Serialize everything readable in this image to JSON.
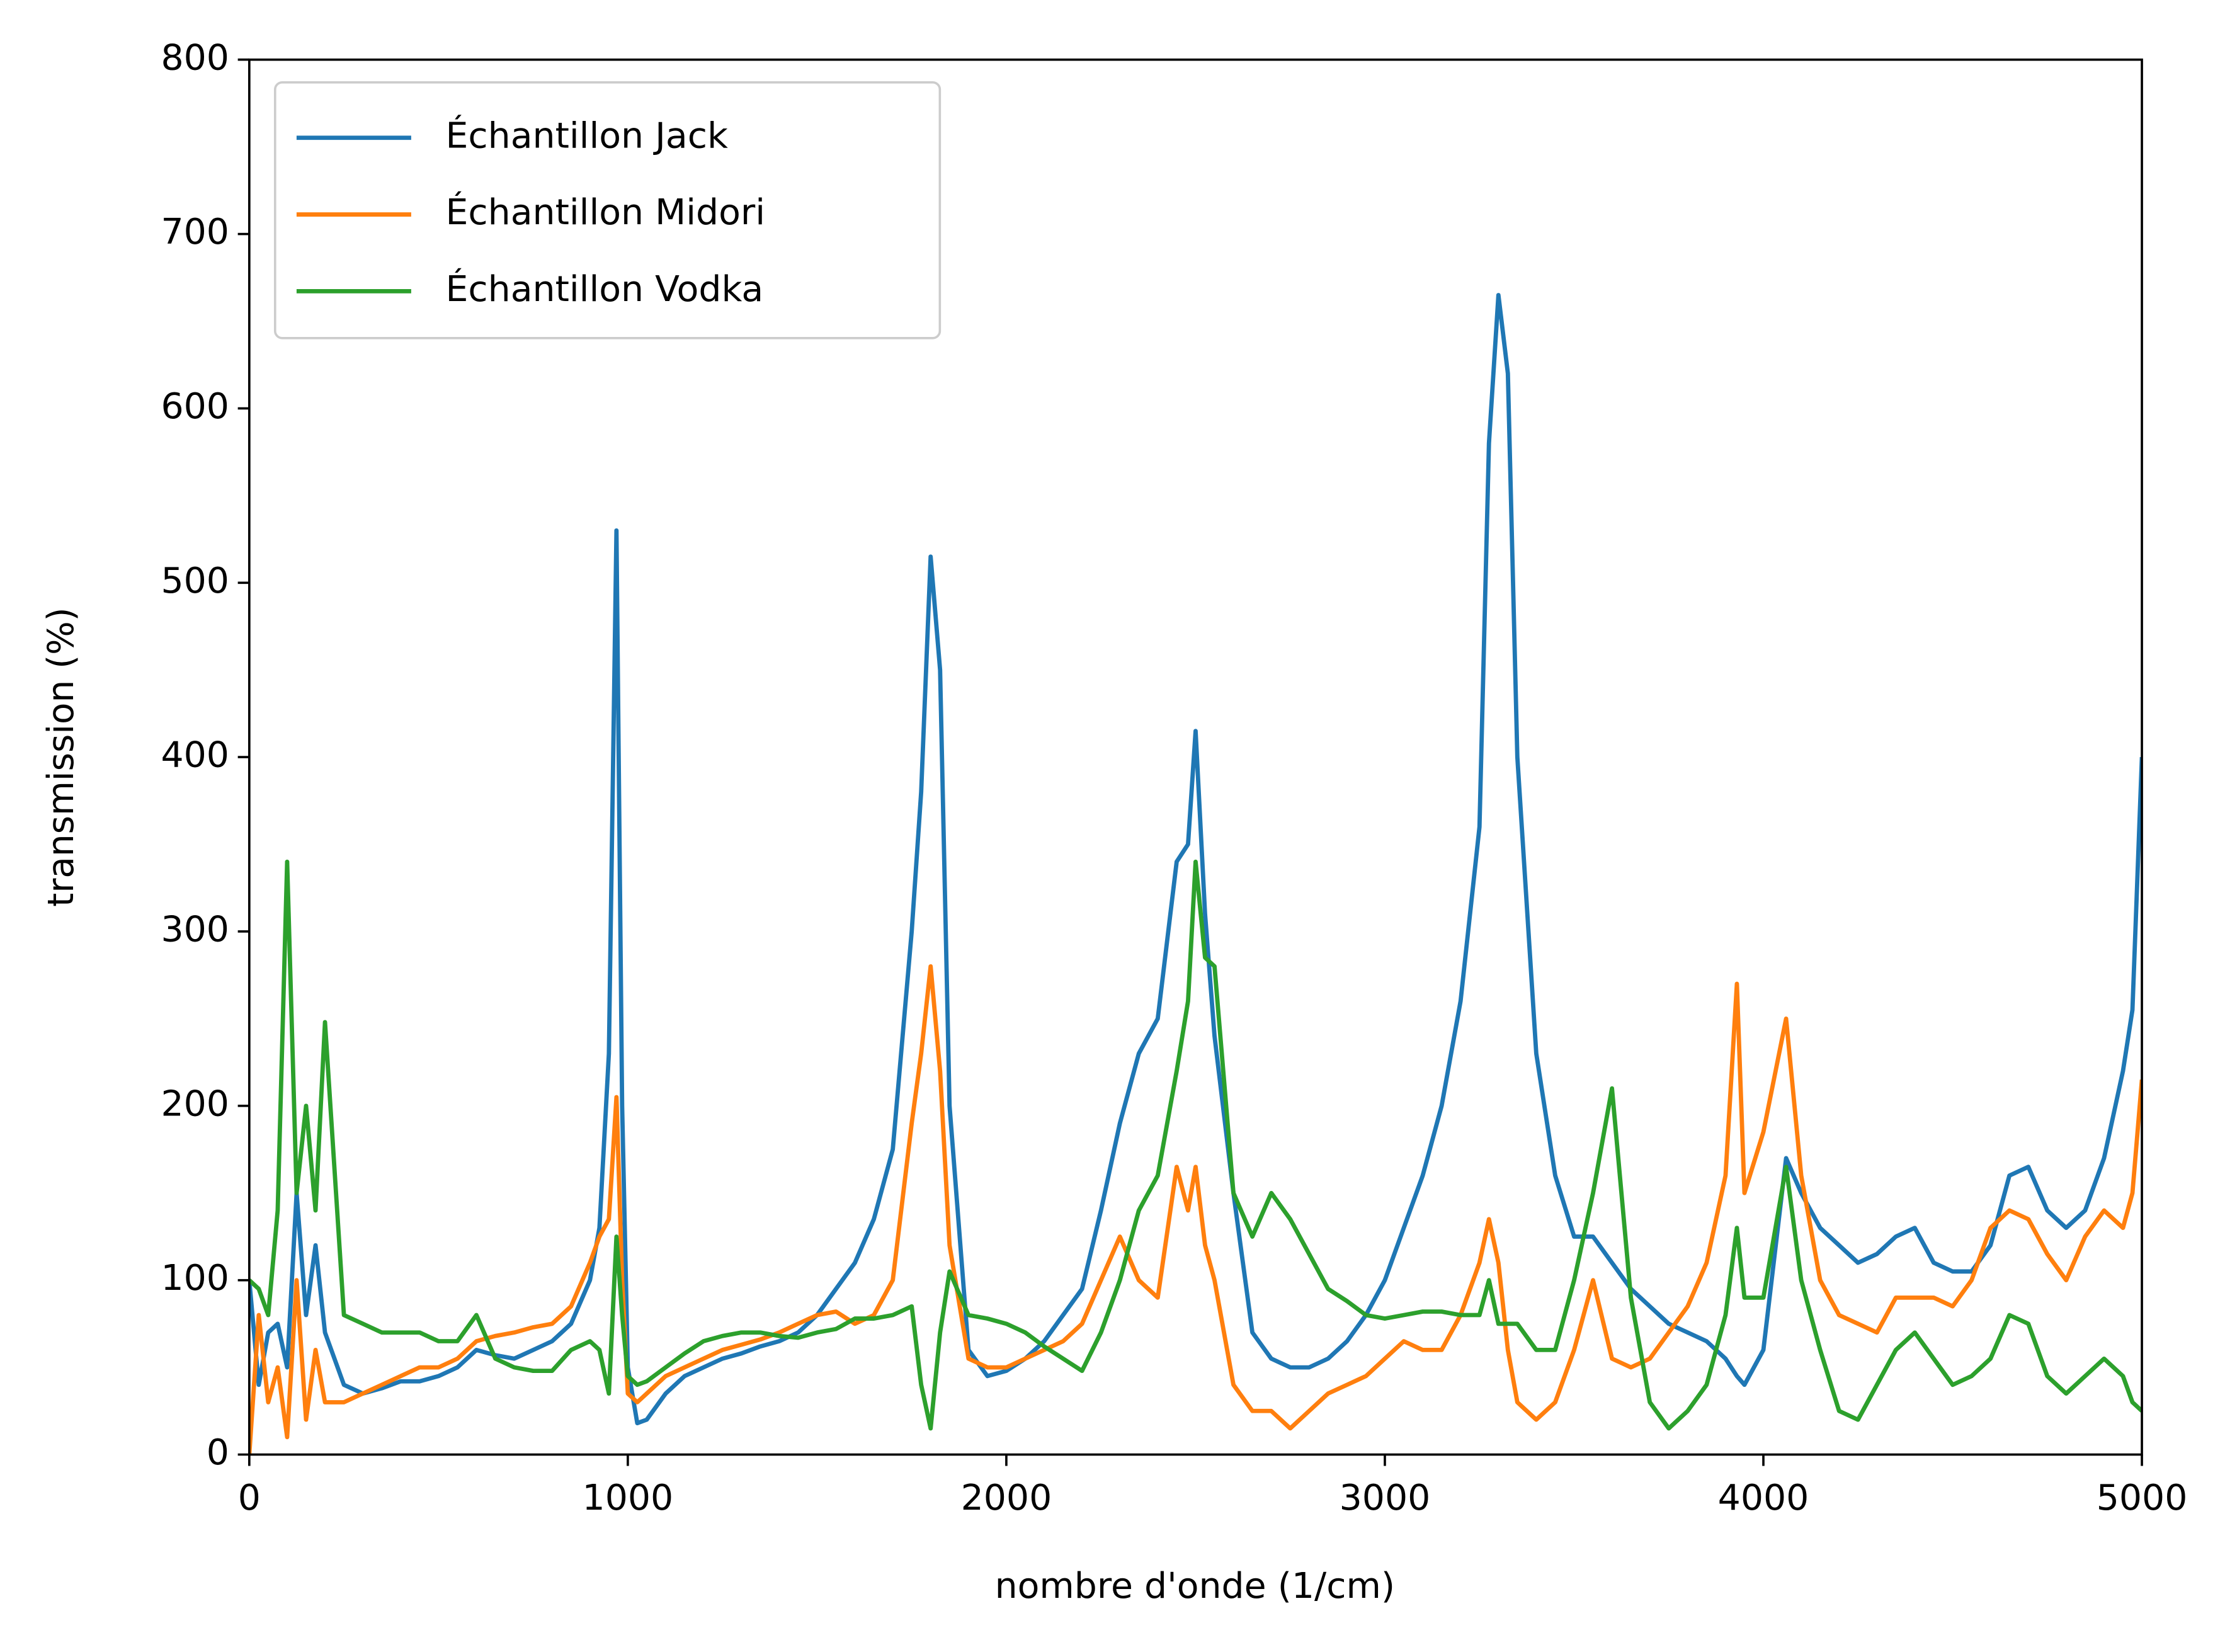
{
  "chart_data": {
    "type": "line",
    "xlabel": "nombre d'onde (1/cm)",
    "ylabel": "transmission (%)",
    "xlim": [
      0,
      5000
    ],
    "ylim": [
      0,
      800
    ],
    "xticks": [
      0,
      1000,
      2000,
      3000,
      4000,
      5000
    ],
    "yticks": [
      0,
      100,
      200,
      300,
      400,
      500,
      600,
      700,
      800
    ],
    "legend": "upper left",
    "x": [
      0,
      25,
      50,
      75,
      100,
      125,
      150,
      175,
      200,
      250,
      300,
      350,
      400,
      450,
      500,
      550,
      600,
      650,
      700,
      750,
      800,
      850,
      900,
      925,
      950,
      970,
      985,
      1000,
      1025,
      1050,
      1100,
      1150,
      1200,
      1250,
      1300,
      1350,
      1400,
      1450,
      1500,
      1550,
      1600,
      1650,
      1700,
      1750,
      1775,
      1800,
      1825,
      1850,
      1900,
      1950,
      2000,
      2050,
      2100,
      2150,
      2200,
      2250,
      2300,
      2350,
      2400,
      2450,
      2480,
      2500,
      2525,
      2550,
      2600,
      2650,
      2700,
      2750,
      2800,
      2850,
      2900,
      2950,
      3000,
      3050,
      3100,
      3150,
      3200,
      3250,
      3275,
      3300,
      3325,
      3350,
      3400,
      3450,
      3500,
      3550,
      3600,
      3650,
      3700,
      3750,
      3800,
      3850,
      3900,
      3930,
      3950,
      4000,
      4060,
      4100,
      4150,
      4200,
      4250,
      4300,
      4350,
      4400,
      4450,
      4500,
      4550,
      4600,
      4650,
      4700,
      4750,
      4800,
      4850,
      4900,
      4950,
      4975,
      5000
    ],
    "series": [
      {
        "name": "Échantillon Jack",
        "color": "#1f77b4",
        "values": [
          100,
          40,
          70,
          75,
          50,
          150,
          80,
          120,
          70,
          40,
          35,
          38,
          42,
          42,
          45,
          50,
          60,
          57,
          55,
          60,
          65,
          75,
          100,
          130,
          230,
          530,
          200,
          50,
          18,
          20,
          35,
          45,
          50,
          55,
          58,
          62,
          65,
          70,
          80,
          95,
          110,
          135,
          175,
          300,
          380,
          515,
          450,
          200,
          60,
          45,
          48,
          55,
          65,
          80,
          95,
          140,
          190,
          230,
          250,
          340,
          350,
          415,
          310,
          240,
          150,
          70,
          55,
          50,
          50,
          55,
          65,
          80,
          100,
          130,
          160,
          200,
          260,
          360,
          580,
          665,
          620,
          400,
          230,
          160,
          125,
          125,
          110,
          95,
          85,
          75,
          70,
          65,
          55,
          45,
          40,
          60,
          170,
          150,
          130,
          120,
          110,
          115,
          125,
          130,
          110,
          105,
          105,
          120,
          160,
          165,
          140,
          130,
          140,
          170,
          220,
          255,
          400
        ]
      },
      {
        "name": "Échantillon Midori",
        "color": "#ff7f0e",
        "values": [
          0,
          80,
          30,
          50,
          10,
          100,
          20,
          60,
          30,
          30,
          35,
          40,
          45,
          50,
          50,
          55,
          65,
          68,
          70,
          73,
          75,
          85,
          110,
          125,
          135,
          205,
          100,
          35,
          30,
          35,
          45,
          50,
          55,
          60,
          63,
          66,
          70,
          75,
          80,
          82,
          75,
          80,
          100,
          190,
          230,
          280,
          220,
          120,
          55,
          50,
          50,
          55,
          60,
          65,
          75,
          100,
          125,
          100,
          90,
          165,
          140,
          165,
          120,
          100,
          40,
          25,
          25,
          15,
          25,
          35,
          40,
          45,
          55,
          65,
          60,
          60,
          80,
          110,
          135,
          110,
          60,
          30,
          20,
          30,
          60,
          100,
          55,
          50,
          55,
          70,
          85,
          110,
          160,
          270,
          150,
          185,
          250,
          160,
          100,
          80,
          75,
          70,
          90,
          90,
          90,
          85,
          100,
          130,
          140,
          135,
          115,
          100,
          125,
          140,
          130,
          150,
          215
        ]
      },
      {
        "name": "Échantillon Vodka",
        "color": "#2ca02c",
        "values": [
          100,
          95,
          80,
          140,
          340,
          150,
          200,
          140,
          248,
          80,
          75,
          70,
          70,
          70,
          65,
          65,
          80,
          55,
          50,
          48,
          48,
          60,
          65,
          60,
          35,
          125,
          80,
          45,
          40,
          42,
          50,
          58,
          65,
          68,
          70,
          70,
          68,
          67,
          70,
          72,
          78,
          78,
          80,
          85,
          40,
          15,
          70,
          105,
          80,
          78,
          75,
          70,
          62,
          55,
          48,
          70,
          100,
          140,
          160,
          220,
          260,
          340,
          285,
          280,
          150,
          125,
          150,
          135,
          115,
          95,
          88,
          80,
          78,
          80,
          82,
          82,
          80,
          80,
          100,
          75,
          75,
          75,
          60,
          60,
          100,
          150,
          210,
          90,
          30,
          15,
          25,
          40,
          80,
          130,
          90,
          90,
          165,
          100,
          60,
          25,
          20,
          40,
          60,
          70,
          55,
          40,
          45,
          55,
          80,
          75,
          45,
          35,
          45,
          55,
          45,
          30,
          25
        ]
      }
    ]
  }
}
